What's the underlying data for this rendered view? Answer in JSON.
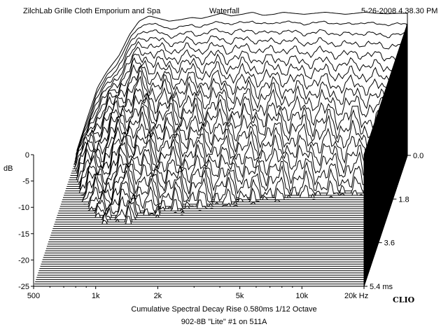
{
  "header": {
    "left": "ZilchLab Grille Cloth Emporium and Spa",
    "center": "Waterfall",
    "right": "5-26-2008 4.38.30 PM"
  },
  "footer": {
    "line1": "Cumulative Spectral Decay   Rise 0.580ms   1/12 Octave",
    "line2": "902-8B \"Lite\" #1 on 511A"
  },
  "brand": "CLIO",
  "chart_data": {
    "type": "waterfall",
    "title": "Waterfall",
    "subtitle": "Cumulative Spectral Decay   Rise 0.580ms   1/12 Octave",
    "x_axis": {
      "scale": "log",
      "range_hz": [
        500,
        20000
      ],
      "ticks": [
        {
          "value": 500,
          "label": "500"
        },
        {
          "value": 1000,
          "label": "1k"
        },
        {
          "value": 2000,
          "label": "2k"
        },
        {
          "value": 5000,
          "label": "5k"
        },
        {
          "value": 10000,
          "label": "10k"
        },
        {
          "value": 20000,
          "label": "20k Hz"
        }
      ]
    },
    "y_axis": {
      "label": "dB",
      "range": [
        -25,
        0
      ],
      "ticks": [
        {
          "value": 0,
          "label": "0"
        },
        {
          "value": -5,
          "label": "-5"
        },
        {
          "value": -10,
          "label": "-10"
        },
        {
          "value": -15,
          "label": "-15"
        },
        {
          "value": -20,
          "label": "-20"
        },
        {
          "value": -25,
          "label": "-25"
        }
      ]
    },
    "time_axis": {
      "unit": "ms",
      "range": [
        0,
        5.4
      ],
      "ticks": [
        {
          "value": 0.0,
          "label": "0.0"
        },
        {
          "value": 1.8,
          "label": "1.8"
        },
        {
          "value": 3.6,
          "label": "3.6"
        },
        {
          "value": 5.4,
          "label": "5.4 ms"
        }
      ]
    },
    "slice_count": 60,
    "slice_interval_ms": 0.0915,
    "first_slice": {
      "freq_hz": [
        500,
        560,
        630,
        700,
        800,
        900,
        1000,
        1120,
        1250,
        1400,
        1600,
        1800,
        2000,
        2250,
        2500,
        2800,
        3150,
        3550,
        4000,
        4500,
        5000,
        5600,
        6300,
        7100,
        8000,
        9000,
        10000,
        11200,
        12500,
        14000,
        16000,
        18000,
        20000
      ],
      "db": [
        -24,
        -18,
        -12,
        -9,
        -6,
        -2,
        0.5,
        1.5,
        1,
        0.5,
        0.8,
        1.2,
        1,
        1.5,
        2,
        1.5,
        1.8,
        2.2,
        1.6,
        1.8,
        2.2,
        2,
        1.8,
        2,
        2.2,
        2,
        1.8,
        2,
        2.2,
        2,
        1.9,
        2,
        2
      ]
    }
  }
}
